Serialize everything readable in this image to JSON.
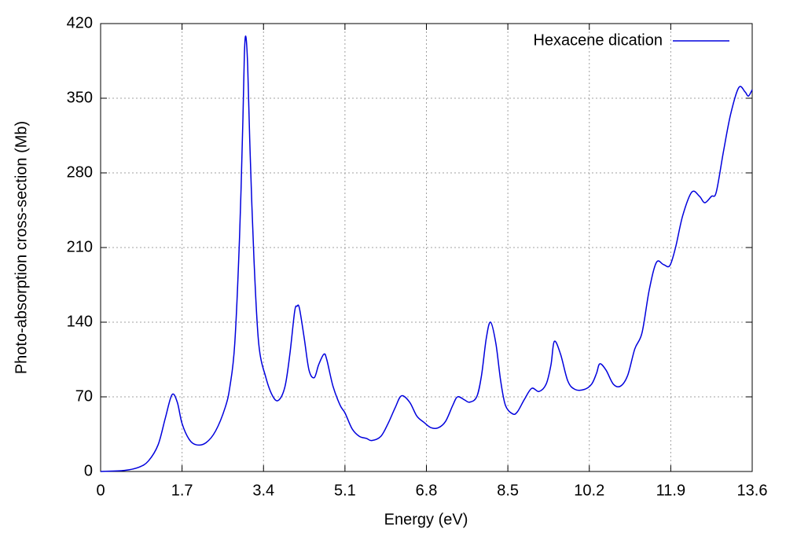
{
  "chart_data": {
    "type": "line",
    "xlabel": "Energy (eV)",
    "ylabel": "Photo-absorption cross-section (Mb)",
    "xlim": [
      0,
      13.6
    ],
    "xticks": [
      0,
      1.7,
      3.4,
      5.1,
      6.8,
      8.5,
      10.2,
      11.9,
      13.6
    ],
    "ylim": [
      0,
      420
    ],
    "yticks": [
      0,
      70,
      140,
      210,
      280,
      350,
      420
    ],
    "grid": true,
    "legend": "top-right",
    "series": [
      {
        "name": "Hexacene dication",
        "color": "#0000dd",
        "x": [
          0,
          0.5,
          0.8,
          1.0,
          1.2,
          1.35,
          1.49,
          1.6,
          1.7,
          1.85,
          2.0,
          2.2,
          2.4,
          2.6,
          2.7,
          2.8,
          2.9,
          2.97,
          3.0,
          3.03,
          3.07,
          3.12,
          3.2,
          3.3,
          3.45,
          3.6,
          3.72,
          3.85,
          3.95,
          4.05,
          4.1,
          4.15,
          4.25,
          4.35,
          4.46,
          4.55,
          4.66,
          4.72,
          4.85,
          5.0,
          5.1,
          5.25,
          5.4,
          5.55,
          5.66,
          5.85,
          6.0,
          6.15,
          6.28,
          6.45,
          6.6,
          6.75,
          6.9,
          7.05,
          7.2,
          7.35,
          7.45,
          7.6,
          7.7,
          7.85,
          7.95,
          8.05,
          8.14,
          8.25,
          8.35,
          8.45,
          8.6,
          8.7,
          8.85,
          9.0,
          9.15,
          9.3,
          9.4,
          9.47,
          9.6,
          9.75,
          9.9,
          10.1,
          10.25,
          10.35,
          10.42,
          10.55,
          10.7,
          10.85,
          11.0,
          11.15,
          11.3,
          11.45,
          11.6,
          11.75,
          11.88,
          12.0,
          12.15,
          12.34,
          12.5,
          12.61,
          12.75,
          12.85,
          13.0,
          13.15,
          13.32,
          13.45,
          13.52,
          13.6
        ],
        "values": [
          0,
          1,
          4,
          10,
          25,
          50,
          72,
          65,
          45,
          30,
          25,
          27,
          38,
          60,
          80,
          120,
          220,
          330,
          390,
          408,
          380,
          300,
          200,
          120,
          88,
          70,
          67,
          80,
          110,
          150,
          155,
          153,
          125,
          95,
          88,
          100,
          110,
          105,
          80,
          62,
          55,
          40,
          33,
          31,
          29,
          33,
          45,
          60,
          71,
          65,
          52,
          46,
          41,
          41,
          47,
          62,
          70,
          67,
          65,
          70,
          90,
          125,
          140,
          120,
          85,
          62,
          54,
          56,
          68,
          78,
          75,
          82,
          100,
          122,
          110,
          85,
          77,
          77,
          82,
          92,
          101,
          95,
          82,
          80,
          90,
          115,
          130,
          170,
          196,
          194,
          193,
          210,
          240,
          262,
          258,
          252,
          258,
          262,
          300,
          335,
          360,
          356,
          352,
          358
        ]
      }
    ]
  }
}
